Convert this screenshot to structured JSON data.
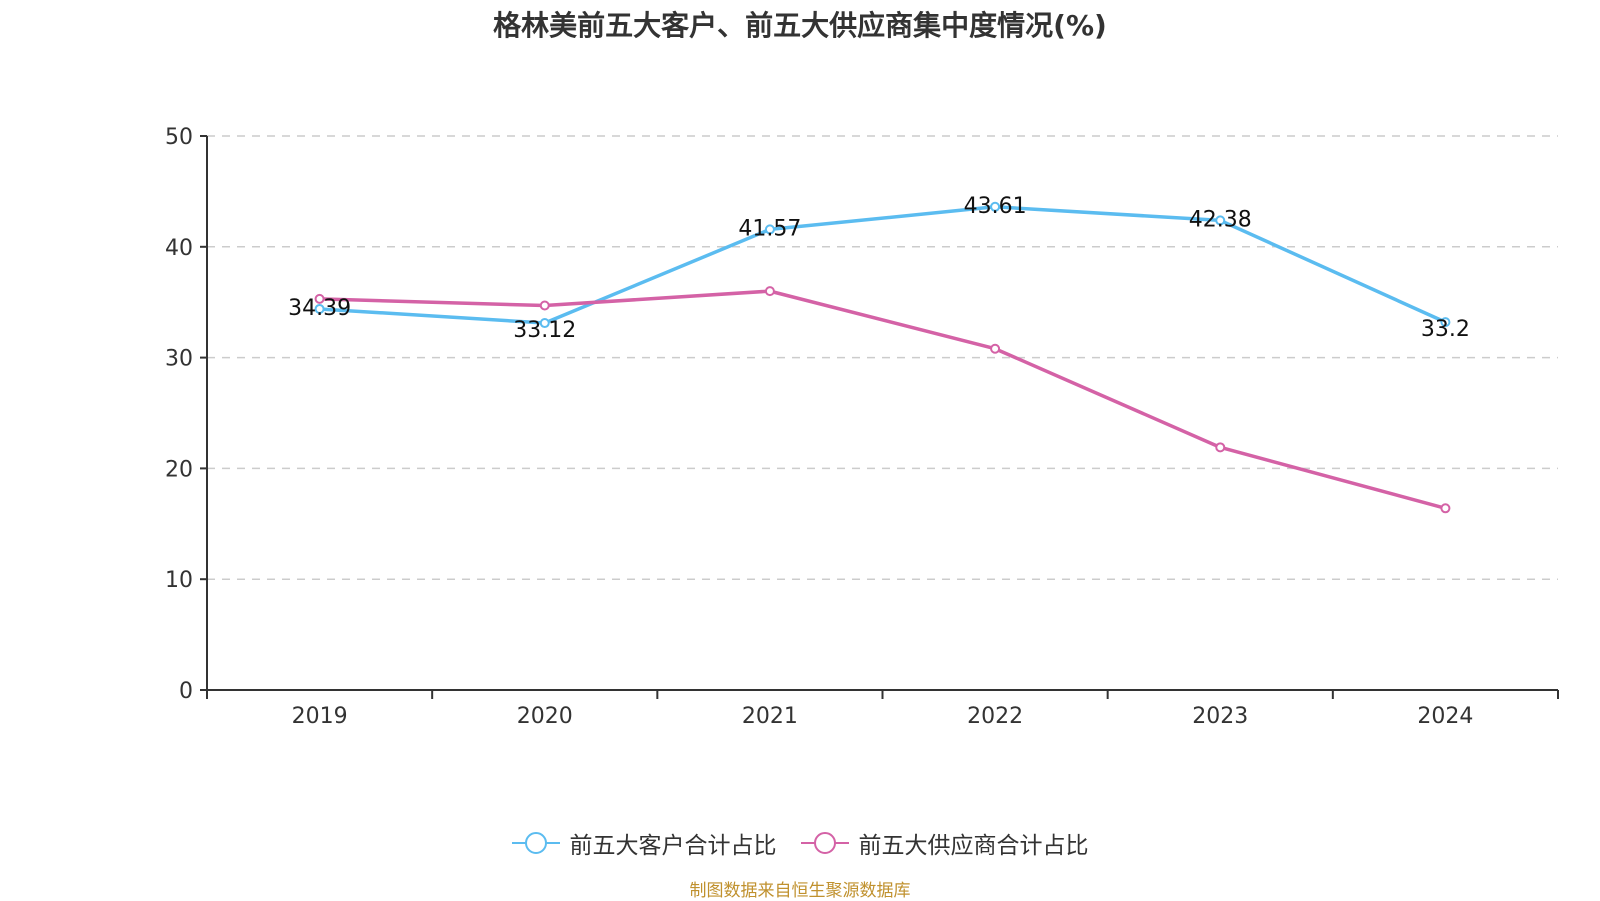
{
  "chart_data": {
    "type": "line",
    "title": "格林美前五大客户、前五大供应商集中度情况(%)",
    "xlabel": "",
    "ylabel": "",
    "categories": [
      "2019",
      "2020",
      "2021",
      "2022",
      "2023",
      "2024"
    ],
    "ylim": [
      0,
      50
    ],
    "yticks": [
      "0",
      "10",
      "20",
      "30",
      "40",
      "50"
    ],
    "grid": true,
    "legend_position": "bottom",
    "series": [
      {
        "name": "前五大客户合计占比",
        "color": "#5bbcf0",
        "values": [
          34.39,
          33.12,
          41.57,
          43.61,
          42.38,
          33.2
        ],
        "labels": [
          "34.39",
          "33.12",
          "41.57",
          "43.61",
          "42.38",
          "33.2"
        ]
      },
      {
        "name": "前五大供应商合计占比",
        "color": "#d462a6",
        "values": [
          35.3,
          34.7,
          36.0,
          30.8,
          21.9,
          16.4
        ]
      }
    ]
  },
  "footer": "制图数据来自恒生聚源数据库"
}
